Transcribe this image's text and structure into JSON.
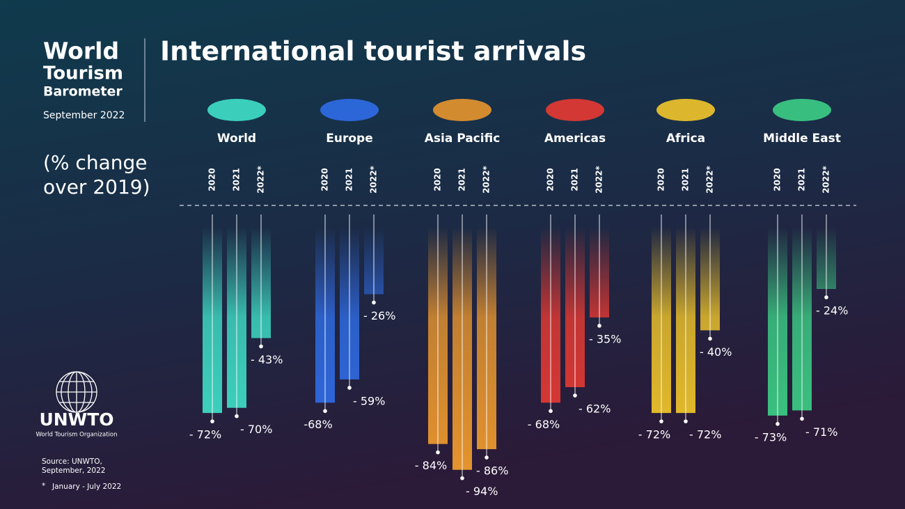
{
  "header": {
    "lines": [
      "World",
      "Tourism",
      "Barometer"
    ],
    "date": "September 2022"
  },
  "logo": {
    "name": "UNWTO",
    "org": "World Tourism Organization"
  },
  "notes": {
    "source": [
      "Source: UNWTO,",
      "September, 2022"
    ],
    "footnote_mark": "*",
    "footnote": "January - July 2022"
  },
  "chart_data": {
    "type": "bar",
    "title": "International tourist arrivals",
    "subtitle": [
      "(% change",
      "over 2019)"
    ],
    "categories": [
      "World",
      "Europe",
      "Asia Pacific",
      "Americas",
      "Africa",
      "Middle East"
    ],
    "colors": [
      "#3fe0c8",
      "#2f6de8",
      "#e8962e",
      "#e83a32",
      "#f2c72a",
      "#3ccf86"
    ],
    "series": [
      {
        "name": "2020",
        "values": [
          -72,
          -68,
          -84,
          -68,
          -72,
          -73
        ],
        "value_labels": [
          "- 72%",
          "-68%",
          "- 84%",
          "- 68%",
          "- 72%",
          "- 73%"
        ]
      },
      {
        "name": "2021",
        "values": [
          -70,
          -59,
          -94,
          -62,
          -72,
          -71
        ],
        "value_labels": [
          "- 70%",
          "- 59%",
          "- 94%",
          "- 62%",
          "- 72%",
          "- 71%"
        ]
      },
      {
        "name": "2022*",
        "values": [
          -43,
          -26,
          -86,
          -35,
          -40,
          -24
        ],
        "value_labels": [
          "- 43%",
          "- 26%",
          "- 86%",
          "- 35%",
          "- 40%",
          "- 24%"
        ]
      }
    ],
    "ylim": [
      -100,
      0
    ]
  }
}
